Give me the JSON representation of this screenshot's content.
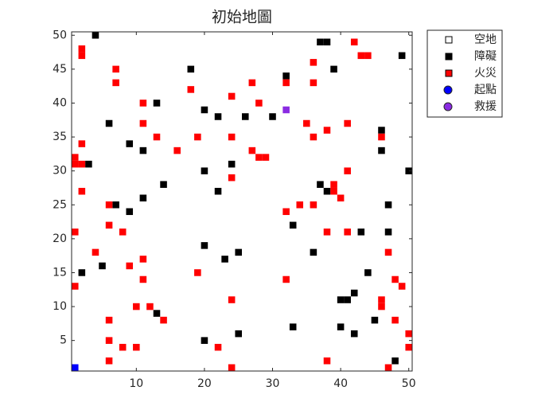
{
  "chart_data": {
    "type": "grid-map",
    "title": "初始地圖",
    "xlim": [
      0.5,
      50.5
    ],
    "ylim": [
      0.5,
      50.5
    ],
    "xticks": [
      10,
      20,
      30,
      40,
      50
    ],
    "yticks": [
      5,
      10,
      15,
      20,
      25,
      30,
      35,
      40,
      45,
      50
    ],
    "legend": "outside-top-right",
    "series": [
      {
        "name": "空地",
        "color": "#ffffff",
        "marker": "square",
        "x": [],
        "y": []
      },
      {
        "name": "障礙",
        "color": "#000000",
        "marker": "square",
        "x": [
          4,
          37,
          38,
          49,
          18,
          32,
          39,
          13,
          20,
          22,
          26,
          30,
          6,
          46,
          9,
          11,
          46,
          24,
          3,
          20,
          50,
          37,
          14,
          38,
          22,
          11,
          7,
          47,
          9,
          33,
          43,
          47,
          20,
          25,
          36,
          23,
          5,
          2,
          44,
          42,
          40,
          41,
          13,
          45,
          33,
          40,
          25,
          42,
          20,
          48
        ],
        "y": [
          50,
          49,
          49,
          47,
          45,
          44,
          45,
          40,
          39,
          38,
          38,
          38,
          37,
          36,
          34,
          33,
          33,
          31,
          31,
          30,
          30,
          28,
          28,
          27,
          27,
          26,
          25,
          25,
          24,
          22,
          21,
          21,
          19,
          18,
          18,
          17,
          16,
          15,
          15,
          12,
          11,
          11,
          9,
          8,
          7,
          7,
          6,
          6,
          5,
          2
        ]
      },
      {
        "name": "火災",
        "color": "#ff0000",
        "marker": "square",
        "x": [
          42,
          2,
          2,
          43,
          44,
          36,
          7,
          32,
          7,
          27,
          36,
          18,
          24,
          11,
          28,
          35,
          11,
          41,
          38,
          13,
          19,
          24,
          36,
          46,
          2,
          16,
          27,
          28,
          29,
          1,
          1,
          2,
          41,
          24,
          39,
          39,
          2,
          40,
          6,
          34,
          36,
          32,
          6,
          1,
          8,
          38,
          41,
          4,
          47,
          11,
          9,
          19,
          11,
          32,
          48,
          1,
          49,
          46,
          46,
          24,
          10,
          12,
          14,
          6,
          48,
          50,
          6,
          8,
          10,
          22,
          50,
          6,
          38,
          24,
          47
        ],
        "y": [
          49,
          48,
          47,
          47,
          47,
          46,
          45,
          43,
          43,
          43,
          43,
          42,
          41,
          40,
          40,
          37,
          37,
          37,
          36,
          35,
          35,
          35,
          35,
          35,
          34,
          33,
          33,
          32,
          32,
          32,
          31,
          31,
          30,
          29,
          28,
          27,
          27,
          26,
          25,
          25,
          25,
          24,
          22,
          21,
          21,
          21,
          21,
          18,
          18,
          17,
          16,
          15,
          14,
          14,
          14,
          13,
          13,
          11,
          10,
          11,
          10,
          10,
          8,
          8,
          8,
          6,
          5,
          4,
          4,
          4,
          4,
          2,
          2,
          1,
          1
        ]
      },
      {
        "name": "起點",
        "color": "#0000ff",
        "marker": "circle",
        "x": [
          1
        ],
        "y": [
          1
        ]
      },
      {
        "name": "救援",
        "color": "#8a2be2",
        "marker": "circle",
        "x": [
          32
        ],
        "y": [
          39
        ]
      }
    ]
  }
}
